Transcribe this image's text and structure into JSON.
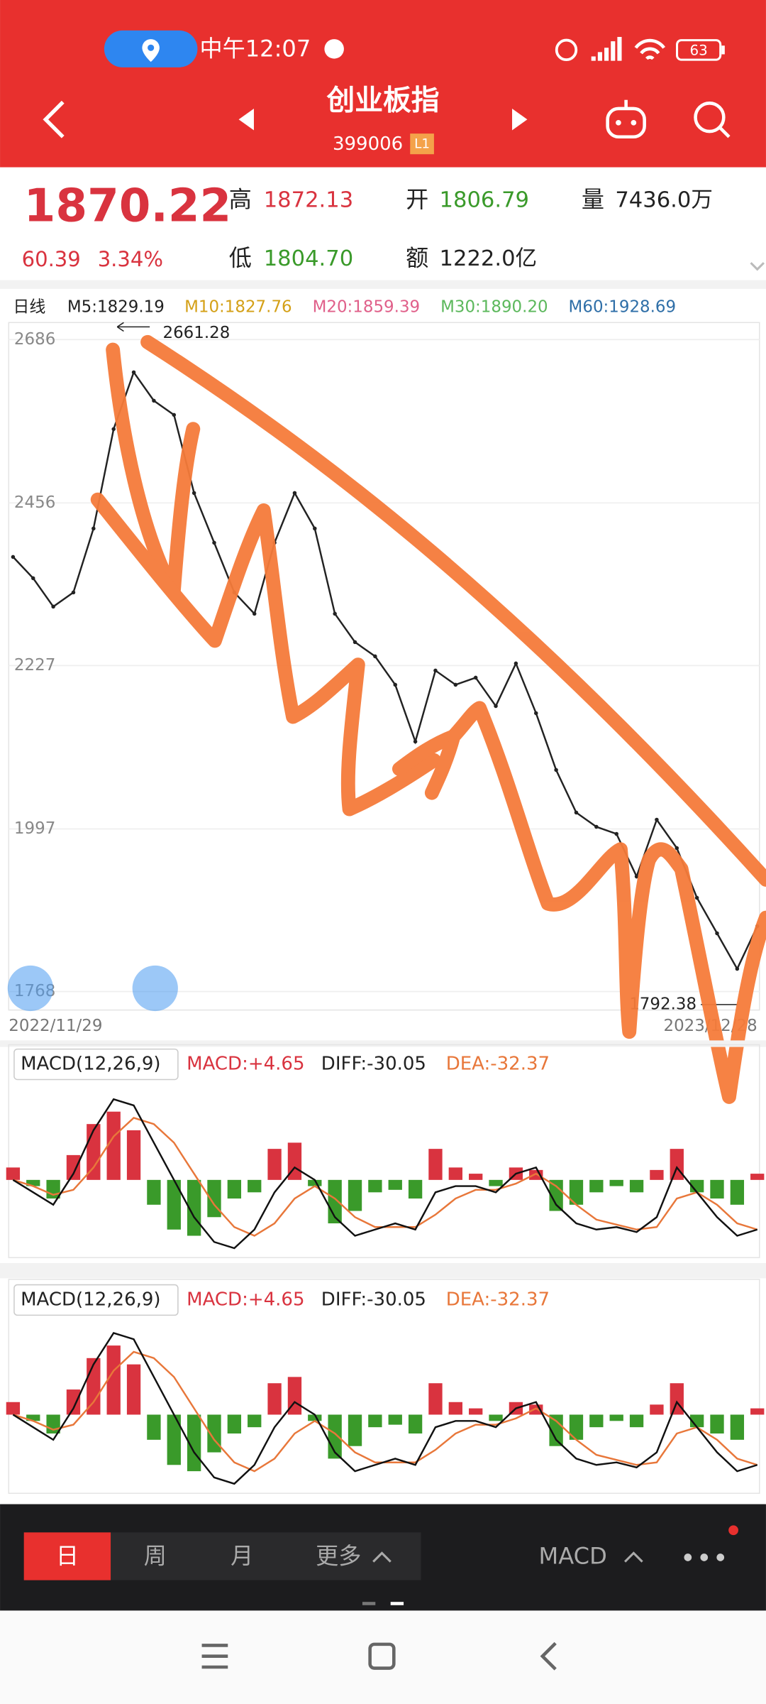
{
  "status_bar": {
    "time": "中午12:07",
    "battery": "63"
  },
  "header": {
    "title": "创业板指",
    "code": "399006",
    "badge": "L1"
  },
  "quote": {
    "price": "1870.22",
    "change": "60.39",
    "change_pct": "3.34%",
    "high_label": "高",
    "high": "1872.13",
    "open_label": "开",
    "open": "1806.79",
    "volume_label": "量",
    "volume": "7436.0万",
    "low_label": "低",
    "low": "1804.70",
    "amount_label": "额",
    "amount": "1222.0亿"
  },
  "ma_legend": {
    "period": "日线",
    "items": [
      {
        "label": "M5:1829.19",
        "color": "#222222"
      },
      {
        "label": "M10:1827.76",
        "color": "#d4a017"
      },
      {
        "label": "M20:1859.39",
        "color": "#e0608a"
      },
      {
        "label": "M30:1890.20",
        "color": "#5cb85c"
      },
      {
        "label": "M60:1928.69",
        "color": "#2f6fa8"
      }
    ]
  },
  "kline": {
    "ylim": [
      1742,
      2710
    ],
    "yticks": [
      2686,
      2456,
      2227,
      1997,
      1768
    ],
    "grid": true,
    "x_labels": [
      "2022/11/29",
      "2023/12/28"
    ],
    "high_marker": "2661.28",
    "low_marker": "1792.38",
    "color": "#222222",
    "close": [
      2380,
      2350,
      2310,
      2330,
      2420,
      2560,
      2640,
      2600,
      2580,
      2470,
      2400,
      2330,
      2300,
      2400,
      2470,
      2420,
      2300,
      2260,
      2240,
      2200,
      2120,
      2220,
      2200,
      2210,
      2170,
      2230,
      2160,
      2080,
      2020,
      2000,
      1990,
      1930,
      2010,
      1970,
      1900,
      1850,
      1800,
      1860
    ]
  },
  "macd_panels": [
    {
      "title": "MACD(12,26,9)",
      "macd": "MACD:+4.65",
      "diff": "DIFF:-30.05",
      "dea": "DEA:-32.37"
    },
    {
      "title": "MACD(12,26,9)",
      "macd": "MACD:+4.65",
      "diff": "DIFF:-30.05",
      "dea": "DEA:-32.37"
    }
  ],
  "macd": {
    "ylim": [
      -60,
      80
    ],
    "hist": [
      10,
      -5,
      -15,
      20,
      45,
      55,
      40,
      -20,
      -40,
      -45,
      -30,
      -15,
      -10,
      25,
      30,
      -5,
      -35,
      -25,
      -10,
      -8,
      -15,
      25,
      10,
      5,
      -5,
      10,
      8,
      -25,
      -20,
      -10,
      -5,
      -10,
      8,
      25,
      -10,
      -15,
      -20,
      5
    ],
    "diff": [
      0,
      -10,
      -20,
      5,
      40,
      65,
      60,
      30,
      0,
      -30,
      -50,
      -55,
      -40,
      -10,
      10,
      0,
      -30,
      -45,
      -40,
      -35,
      -40,
      -10,
      -5,
      -5,
      -10,
      5,
      10,
      -20,
      -35,
      -40,
      -38,
      -42,
      -30,
      10,
      -10,
      -30,
      -45,
      -40
    ],
    "dea": [
      0,
      -5,
      -12,
      -8,
      10,
      35,
      50,
      45,
      30,
      5,
      -20,
      -38,
      -45,
      -35,
      -15,
      -5,
      -15,
      -30,
      -38,
      -38,
      -38,
      -28,
      -15,
      -8,
      -8,
      -3,
      5,
      -5,
      -20,
      -32,
      -36,
      -40,
      -38,
      -15,
      -10,
      -20,
      -35,
      -40
    ],
    "pos_color": "#d9333f",
    "neg_color": "#3a9a2a",
    "diff_color": "#111111",
    "dea_color": "#e8773a"
  },
  "toolbar": {
    "tabs": [
      "日",
      "周",
      "月",
      "更多"
    ],
    "indicator": "MACD"
  }
}
